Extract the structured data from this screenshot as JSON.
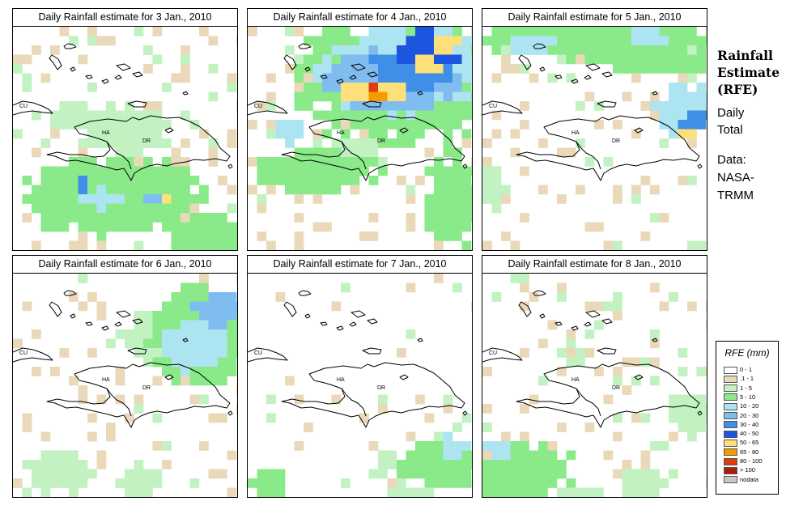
{
  "panels": [
    {
      "title": "Daily Rainfall estimate for  3 Jan., 2010",
      "pattern": "jan3"
    },
    {
      "title": "Daily Rainfall estimate for  4 Jan., 2010",
      "pattern": "jan4"
    },
    {
      "title": "Daily Rainfall estimate for  5 Jan., 2010",
      "pattern": "jan5"
    },
    {
      "title": "Daily Rainfall estimate for  6 Jan., 2010",
      "pattern": "jan6"
    },
    {
      "title": "Daily Rainfall estimate for  7 Jan., 2010",
      "pattern": "jan7"
    },
    {
      "title": "Daily Rainfall estimate for  8 Jan., 2010",
      "pattern": "jan8"
    }
  ],
  "map_labels": {
    "cuba": "CU",
    "haiti": "HA",
    "dominican_republic": "DR"
  },
  "sidebar": {
    "title_line1": "Rainfall",
    "title_line2": "Estimate",
    "title_line3": "(RFE)",
    "daily_line1": "Daily",
    "daily_line2": "Total",
    "data_line1": "Data:",
    "data_line2": "NASA-",
    "data_line3": "TRMM"
  },
  "legend": {
    "title": "RFE (mm)",
    "items": [
      {
        "label": "0 - 1",
        "color": "#ffffff"
      },
      {
        "label": ".1 - 1",
        "color": "#ead9b9"
      },
      {
        "label": "1 - 5",
        "color": "#c2f2c2"
      },
      {
        "label": "5 - 10",
        "color": "#8aea8a"
      },
      {
        "label": "10 - 20",
        "color": "#ade4f2"
      },
      {
        "label": "20 - 30",
        "color": "#7fbdf0"
      },
      {
        "label": "30 - 40",
        "color": "#3f8ee8"
      },
      {
        "label": "40 - 50",
        "color": "#1c55e0"
      },
      {
        "label": "50 - 65",
        "color": "#fde07a"
      },
      {
        "label": "65 - 80",
        "color": "#f59a00"
      },
      {
        "label": "80 - 100",
        "color": "#e03c0c"
      },
      {
        "label": "> 100",
        "color": "#b01808"
      },
      {
        "label": "nodata",
        "color": "#c8c8c8"
      }
    ]
  }
}
